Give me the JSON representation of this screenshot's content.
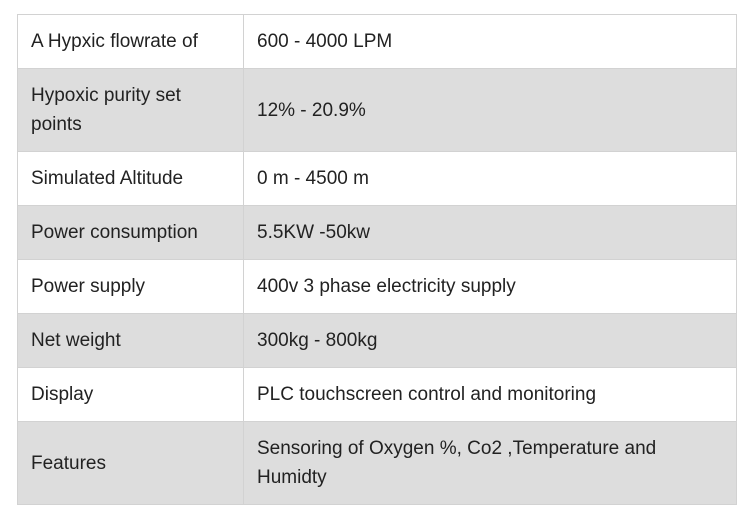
{
  "spec_table": {
    "rows": [
      {
        "label": "A Hypxic flowrate of",
        "value": "600 - 4000 LPM"
      },
      {
        "label": "Hypoxic purity set points",
        "value": "12% - 20.9%"
      },
      {
        "label": "Simulated Altitude",
        "value": "0 m - 4500 m"
      },
      {
        "label": "Power consumption",
        "value": "5.5KW -50kw"
      },
      {
        "label": "Power supply",
        "value": "400v 3 phase electricity supply"
      },
      {
        "label": "Net weight",
        "value": "300kg - 800kg"
      },
      {
        "label": "Display",
        "value": "PLC touchscreen control and monitoring"
      },
      {
        "label": "Features",
        "value": "Sensoring of Oxygen %, Co2 ,Temperature and Humidty"
      }
    ]
  }
}
